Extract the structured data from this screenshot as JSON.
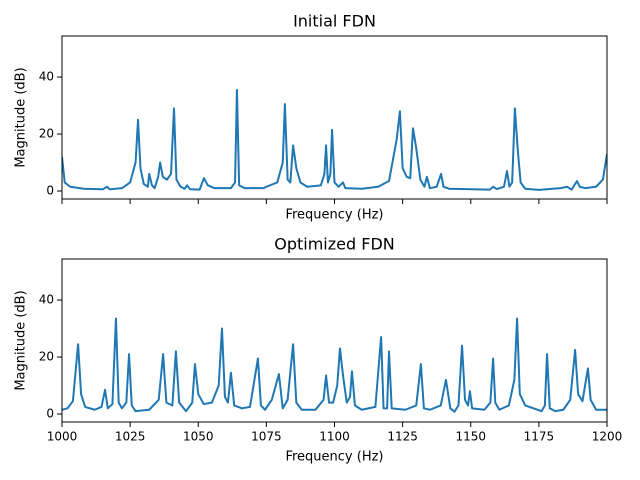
{
  "chart_data": [
    {
      "type": "line",
      "title": "Initial FDN",
      "xlabel": "Frequency (Hz)",
      "ylabel": "Magnitude (dB)",
      "color": "#1f77b4",
      "xlim": [
        1000,
        1200
      ],
      "xticks": [
        1000,
        1025,
        1050,
        1075,
        1100,
        1125,
        1150,
        1175,
        1200
      ],
      "xtick_labels": false,
      "ylim": [
        -2.8,
        54.4
      ],
      "yticks": [
        0,
        20,
        40
      ],
      "x": [
        1000,
        1001,
        1003,
        1008,
        1015,
        1016.5,
        1017.5,
        1022,
        1025,
        1027,
        1027.9,
        1028.8,
        1030,
        1031.5,
        1032,
        1033,
        1034,
        1035.3,
        1036,
        1037,
        1038.5,
        1040,
        1041.1,
        1042,
        1043.5,
        1045,
        1045.9,
        1047,
        1050.5,
        1052.1,
        1053.5,
        1056,
        1062,
        1063.5,
        1064.2,
        1065,
        1067,
        1074,
        1075,
        1079,
        1081,
        1081.8,
        1082.8,
        1083.8,
        1084.8,
        1086,
        1087.5,
        1090,
        1095,
        1096.3,
        1096.9,
        1097.6,
        1098.5,
        1099.1,
        1100,
        1101.5,
        1103.1,
        1104,
        1110,
        1116,
        1120,
        1122.8,
        1124,
        1125,
        1126.5,
        1127.8,
        1128.8,
        1130,
        1131.5,
        1133,
        1133.9,
        1135,
        1137.5,
        1139.1,
        1140,
        1142,
        1157,
        1158.2,
        1159.5,
        1162.2,
        1163.3,
        1164.2,
        1165.2,
        1166.2,
        1167.2,
        1168.3,
        1170,
        1175,
        1183,
        1185.3,
        1187,
        1189,
        1190,
        1192,
        1196,
        1198.5,
        1200
      ],
      "values": [
        12,
        3,
        1.5,
        0.8,
        0.6,
        1.5,
        0.6,
        1,
        3,
        10,
        25,
        8,
        2.5,
        1.5,
        6,
        2,
        1,
        5,
        10,
        5,
        4,
        6,
        29,
        4,
        1.5,
        0.8,
        2,
        0.6,
        0.5,
        4.5,
        2,
        1,
        1,
        3,
        35.5,
        2,
        1,
        1,
        1.5,
        3,
        10,
        30.5,
        4,
        3,
        16,
        8,
        3,
        1.5,
        2,
        6,
        16,
        3,
        6,
        21.5,
        3,
        1.5,
        3,
        1,
        0.8,
        1.5,
        3.5,
        18,
        28,
        8,
        5,
        4.5,
        22,
        15,
        4,
        1.5,
        5,
        1,
        1.5,
        6,
        1.5,
        0.8,
        0.5,
        1.5,
        0.7,
        1.5,
        7,
        1.5,
        3,
        29,
        15,
        3,
        0.8,
        0.4,
        1,
        1.5,
        0.5,
        3.5,
        1.5,
        1,
        1.5,
        4,
        13
      ]
    },
    {
      "type": "line",
      "title": "Optimized FDN",
      "xlabel": "Frequency (Hz)",
      "ylabel": "Magnitude (dB)",
      "color": "#1f77b4",
      "xlim": [
        1000,
        1200
      ],
      "xticks": [
        1000,
        1025,
        1050,
        1075,
        1100,
        1125,
        1150,
        1175,
        1200
      ],
      "xtick_labels": true,
      "ylim": [
        -2.8,
        54.4
      ],
      "yticks": [
        0,
        20,
        40
      ],
      "x": [
        1000,
        1002,
        1004,
        1005.9,
        1007,
        1008.5,
        1012,
        1014.5,
        1015.8,
        1016.8,
        1018.5,
        1019.8,
        1020.8,
        1022,
        1023.6,
        1024.6,
        1025.6,
        1027,
        1032,
        1035.5,
        1037.1,
        1038.3,
        1040.5,
        1041.8,
        1043,
        1045.5,
        1047.8,
        1048.8,
        1050,
        1052,
        1055,
        1057.5,
        1058.7,
        1059.8,
        1060.9,
        1062,
        1063.2,
        1066,
        1069,
        1071.9,
        1073,
        1074.5,
        1077,
        1079.6,
        1081,
        1082.8,
        1084.8,
        1086,
        1088,
        1093,
        1096,
        1096.9,
        1098,
        1099.5,
        1101,
        1102,
        1103.2,
        1104.5,
        1105.7,
        1106.4,
        1107.5,
        1110,
        1115,
        1117.1,
        1118,
        1119.3,
        1120,
        1121,
        1126,
        1130,
        1131.7,
        1132.8,
        1135,
        1139,
        1140.9,
        1142.5,
        1144,
        1145.5,
        1146.8,
        1147.9,
        1149,
        1149.7,
        1150.5,
        1155,
        1157.2,
        1158.2,
        1159,
        1160.5,
        1164,
        1166,
        1167,
        1168,
        1170,
        1176,
        1177.2,
        1178,
        1179,
        1181,
        1184,
        1186.5,
        1188.3,
        1189.4,
        1191,
        1193,
        1194,
        1196,
        1200
      ],
      "values": [
        1.5,
        2,
        4.5,
        24.5,
        7,
        2.5,
        1.5,
        2.5,
        8.5,
        2,
        3.5,
        33.5,
        4,
        2,
        4,
        21,
        3,
        1,
        1.5,
        5,
        21,
        4,
        3,
        22,
        4,
        1,
        4,
        17.5,
        7,
        3.5,
        4,
        10,
        30,
        6,
        4,
        14.5,
        3,
        2,
        2.5,
        19.5,
        3,
        1.5,
        5,
        14,
        2,
        5,
        24.5,
        4,
        1.5,
        1.5,
        5,
        13.5,
        4,
        4,
        10,
        23,
        13,
        4,
        6,
        15,
        3,
        1.5,
        2.5,
        27,
        2,
        2,
        22,
        2,
        1.5,
        3,
        17.5,
        2,
        1.5,
        3,
        12,
        2,
        0.8,
        3,
        24,
        5,
        3,
        8,
        2,
        1.5,
        4,
        19.5,
        4,
        1.5,
        3,
        12,
        33.5,
        7,
        3,
        1,
        3,
        21,
        2,
        1,
        1.5,
        5,
        22.5,
        7,
        4.5,
        16,
        5,
        1.5,
        1.5
      ]
    }
  ]
}
